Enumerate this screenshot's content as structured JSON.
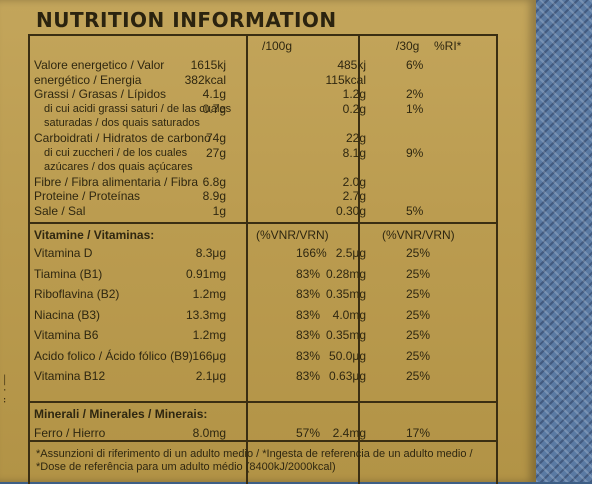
{
  "title": "NUTRITION INFORMATION",
  "headers": {
    "per100": "/100g",
    "per30": "/30g",
    "ri": "%RI*"
  },
  "rows": [
    {
      "label": "Valore energetico / Valor",
      "v100": "1615kj",
      "v30": "485kj",
      "ri": "6%"
    },
    {
      "label": "energético / Energia",
      "v100": "382kcal",
      "v30": "115kcal",
      "ri": ""
    },
    {
      "label": "Grassi / Grasas / Lípidos",
      "v100": "4.1g",
      "v30": "1.2g",
      "ri": "2%"
    },
    {
      "label": "di cui acidi grassi saturi / de las cuales",
      "v100": "0.7g",
      "v30": "0.2g",
      "ri": "1%"
    },
    {
      "label": "saturadas / dos quais saturados",
      "v100": "",
      "v30": "",
      "ri": ""
    },
    {
      "label": "Carboidrati / Hidratos de carbono",
      "v100": "74g",
      "v30": "22g",
      "ri": ""
    },
    {
      "label": "di cui zuccheri / de los cuales",
      "v100": "27g",
      "v30": "8.1g",
      "ri": "9%"
    },
    {
      "label": "azúcares / dos quais açúcares",
      "v100": "",
      "v30": "",
      "ri": ""
    },
    {
      "label": "Fibre / Fibra alimentaria / Fibra",
      "v100": "6.8g",
      "v30": "2.0g",
      "ri": ""
    },
    {
      "label": "Proteine / Proteínas",
      "v100": "8.9g",
      "v30": "2.7g",
      "ri": ""
    },
    {
      "label": "Sale / Sal",
      "v100": "1g",
      "v30": "0.30g",
      "ri": "5%"
    }
  ],
  "vitamins": {
    "heading": "Vitamine / Vitaminas:",
    "col1": "(%VNR/VRN)",
    "col2": "(%VNR/VRN)",
    "rows": [
      {
        "label": "Vitamina D",
        "v100": "8.3μg",
        "vnr100": "166%",
        "v30": "2.5μg",
        "vnr30": "25%"
      },
      {
        "label": "Tiamina (B1)",
        "v100": "0.91mg",
        "vnr100": "83%",
        "v30": "0.28mg",
        "vnr30": "25%"
      },
      {
        "label": "Riboflavina (B2)",
        "v100": "1.2mg",
        "vnr100": "83%",
        "v30": "0.35mg",
        "vnr30": "25%"
      },
      {
        "label": "Niacina (B3)",
        "v100": "13.3mg",
        "vnr100": "83%",
        "v30": "4.0mg",
        "vnr30": "25%"
      },
      {
        "label": "Vitamina B6",
        "v100": "1.2mg",
        "vnr100": "83%",
        "v30": "0.35mg",
        "vnr30": "25%"
      },
      {
        "label": "Acido folico / Ácido fólico (B9)",
        "v100": "166μg",
        "vnr100": "83%",
        "v30": "50.0μg",
        "vnr30": "25%"
      },
      {
        "label": "Vitamina B12",
        "v100": "2.1μg",
        "vnr100": "83%",
        "v30": "0.63μg",
        "vnr30": "25%"
      }
    ]
  },
  "minerals": {
    "heading": "Minerali / Minerales / Minerais:",
    "rows": [
      {
        "label": "Ferro / Hierro",
        "v100": "8.0mg",
        "vnr100": "57%",
        "v30": "2.4mg",
        "vnr30": "17%"
      }
    ]
  },
  "footnote": "*Assunzioni di riferimento di un adulto medio / *Ingesta de referencia de un adulto medio / *Dose de referência para um adulto médio (8400kJ/2000kcal)"
}
